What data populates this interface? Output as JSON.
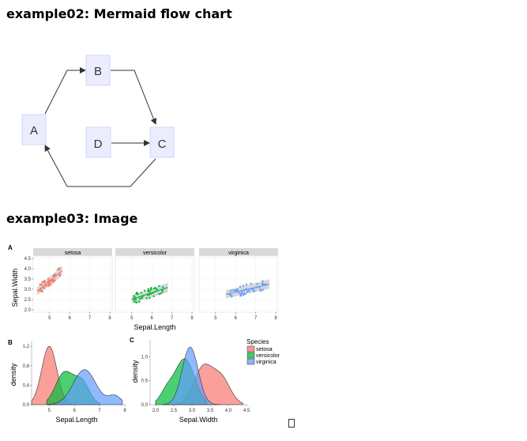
{
  "sections": {
    "flowchart_heading": "example02: Mermaid flow chart",
    "image_heading": "example03: Image"
  },
  "flowchart": {
    "nodes": {
      "a": "A",
      "b": "B",
      "c": "C",
      "d": "D"
    },
    "colors": {
      "node_fill": "#ececff",
      "node_stroke": "#d4d4f8",
      "edge": "#333333"
    }
  },
  "figure": {
    "panel_labels": {
      "a": "A",
      "b": "B",
      "c": "C"
    },
    "scatter": {
      "facets": [
        "setosa",
        "versicolor",
        "virginica"
      ],
      "xlabel": "Sepal.Length",
      "ylabel": "Sepal.Width",
      "x_ticks": [
        "5",
        "6",
        "7",
        "8"
      ],
      "y_ticks": [
        "2.0",
        "2.5",
        "3.0",
        "3.5",
        "4.0",
        "4.5"
      ]
    },
    "density_length": {
      "xlabel": "Sepal.Length",
      "ylabel": "density",
      "x_ticks": [
        "5",
        "6",
        "7",
        "8"
      ],
      "y_ticks": [
        "0.0",
        "0.4",
        "0.8",
        "1.2"
      ]
    },
    "density_width": {
      "xlabel": "Sepal.Width",
      "ylabel": "density",
      "x_ticks": [
        "2.0",
        "2.5",
        "3.0",
        "3.5",
        "4.0",
        "4.5"
      ],
      "y_ticks": [
        "0.0",
        "0.5",
        "1.0"
      ]
    },
    "legend": {
      "title": "Species",
      "items": [
        "setosa",
        "versicolor",
        "virginica"
      ]
    },
    "colors": {
      "setosa": "#f8766d",
      "versicolor": "#00ba38",
      "virginica": "#619cff"
    }
  }
}
